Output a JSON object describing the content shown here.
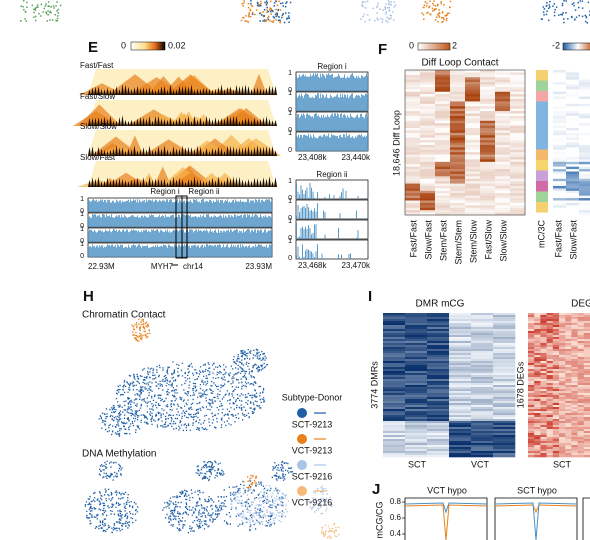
{
  "panel_e": {
    "letter": "E",
    "colorbar_min": "0",
    "colorbar_max": "0.02",
    "row_labels": [
      "Fast/Fast",
      "Fast/Slow",
      "Slow/Slow",
      "Slow/Fast"
    ],
    "track_ticks": [
      "1",
      "0",
      "1",
      "0",
      "1",
      "0",
      "1",
      "0"
    ],
    "region_labels": [
      "Region i",
      "Region ii"
    ],
    "axis_labels": [
      "22.93M",
      "MYH7",
      "chr14",
      "23.93M"
    ],
    "zooms": [
      {
        "title": "Region i",
        "ticks": [
          "1",
          "0",
          "1",
          "0",
          "1",
          "0",
          "1",
          "0"
        ],
        "axis_labels": [
          "23,408k",
          "23,440k"
        ]
      },
      {
        "title": "Region ii",
        "ticks": [
          "1",
          "0",
          "1",
          "0",
          "1",
          "0",
          "1",
          "0"
        ],
        "axis_labels": [
          "23,468k",
          "23,470k"
        ]
      }
    ]
  },
  "panel_f": {
    "letter": "F",
    "colorbar_min": "0",
    "colorbar_max": "2",
    "colorbar2_min": "-2",
    "title": "Diff Loop Contact",
    "y_label": "18,646 Diff Loop",
    "x_labels": [
      "Fast/Fast",
      "Slow/Fast",
      "Stem/Fast",
      "Stem/Stem",
      "Stem/Slow",
      "Fast/Slow",
      "Slow/Slow"
    ],
    "annotation_label": "mC/3C",
    "x_labels_2": [
      "Fast/Fast",
      "Slow/Fast"
    ]
  },
  "panel_h": {
    "letter": "H",
    "top_title": "Chromatin Contact",
    "bottom_title": "DNA Methylation",
    "legend": {
      "title": "Subtype-Donor",
      "items": [
        "SCT-9213",
        "VCT-9213",
        "SCT-9216",
        "VCT-9216"
      ],
      "colors": [
        "#1f5fa6",
        "#e8801c",
        "#a9c4e6",
        "#f5b97a"
      ]
    }
  },
  "panel_i": {
    "letter": "I",
    "title": "DMR mCG",
    "title_2": "DEG",
    "y_label": "3774 DMRs",
    "y_label_2": "1678 DEGs",
    "x_labels": [
      "SCT",
      "VCT"
    ],
    "x_labels_2": [
      "SCT"
    ]
  },
  "panel_j": {
    "letter": "J",
    "titles": [
      "VCT hypo",
      "SCT hypo"
    ],
    "y_label": "mCG/CG",
    "yticks": [
      "0.8",
      "0.6",
      "0.4"
    ]
  }
}
